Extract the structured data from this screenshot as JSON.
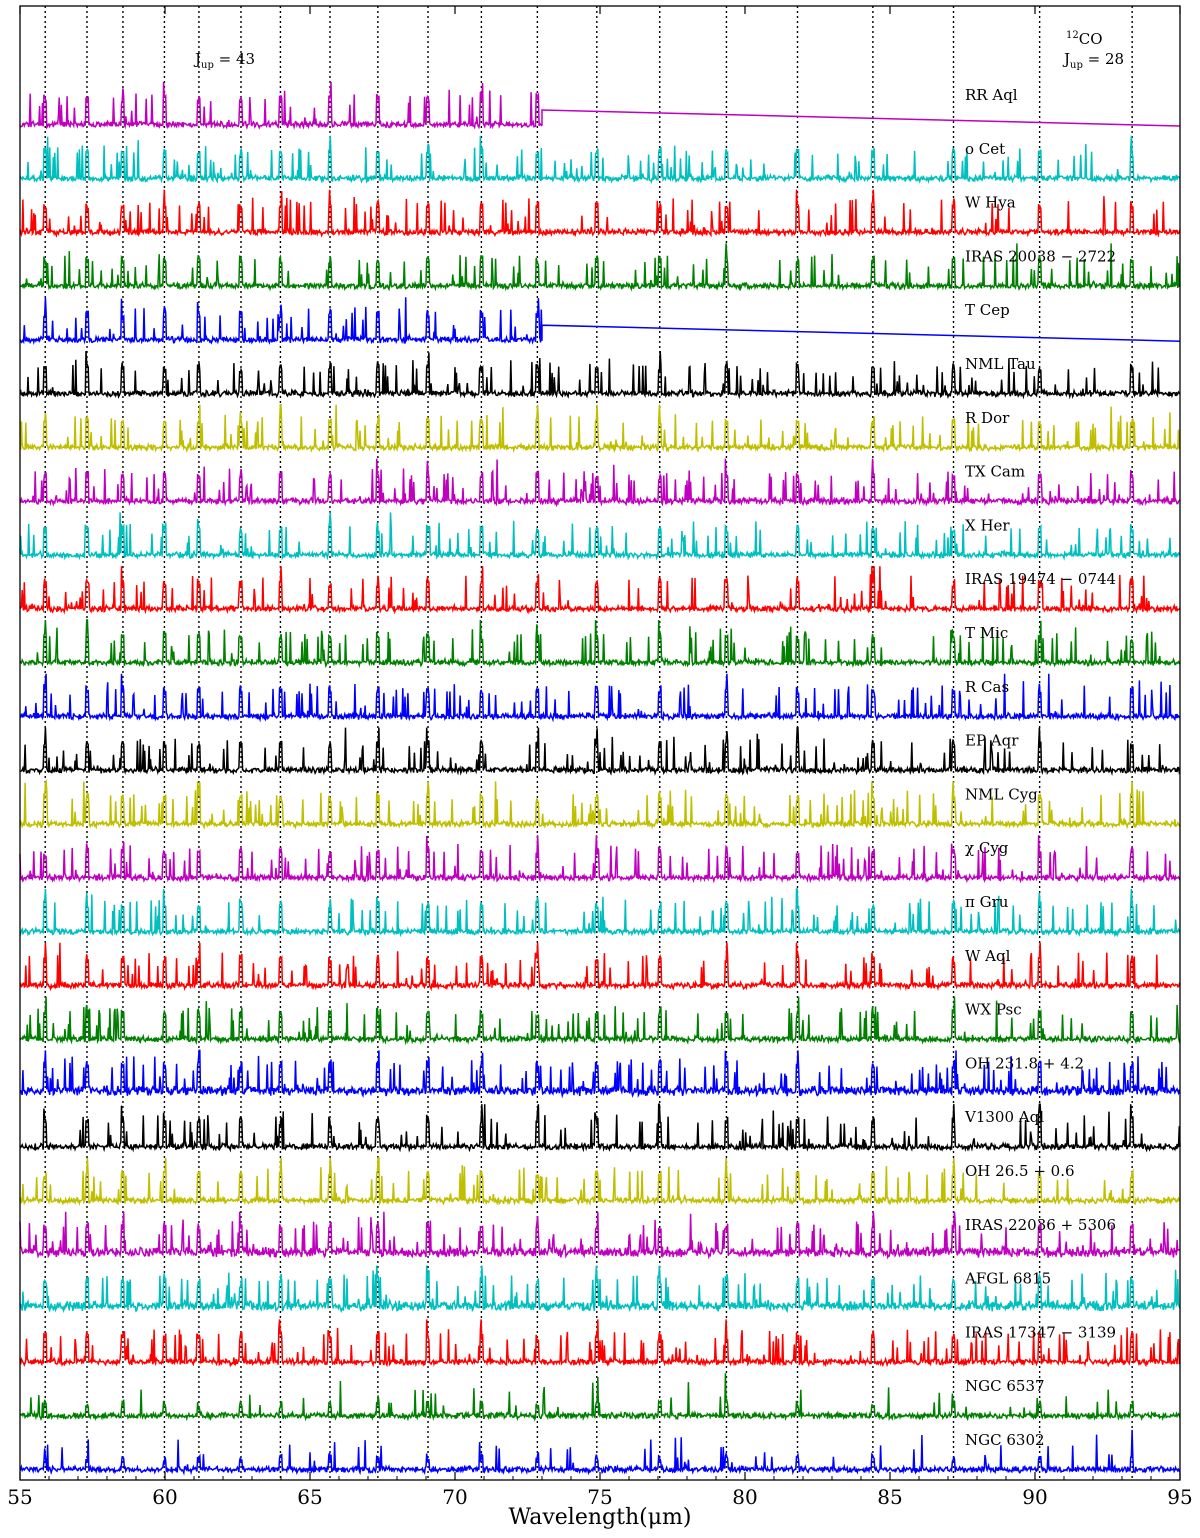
{
  "chart_data": {
    "type": "line",
    "xlabel": "Wavelength(μm)",
    "xlim": [
      55,
      95
    ],
    "xticks": [
      55,
      60,
      65,
      70,
      75,
      80,
      85,
      90,
      95
    ],
    "xtick_labels": [
      "55",
      "60",
      "65",
      "70",
      "75",
      "80",
      "85",
      "90",
      "95"
    ],
    "grid": "vertical dotted lines at 12CO transitions",
    "co_line_positions": [
      55.87,
      57.31,
      58.55,
      59.98,
      61.17,
      62.62,
      63.98,
      65.69,
      67.34,
      69.07,
      70.91,
      72.84,
      74.89,
      77.06,
      79.36,
      81.81,
      84.41,
      87.19,
      90.16,
      93.35
    ],
    "annotations": {
      "left_text": "J",
      "left_sub": "up",
      "left_value": " = 43",
      "right_sup": "12",
      "right_text": "CO",
      "right_j": "J",
      "right_sub": "up",
      "right_value": " = 28"
    },
    "series": [
      {
        "name": "RR Aql",
        "color": "#bf00bf",
        "range": [
          55,
          73
        ]
      },
      {
        "name": "o Cet",
        "color": "#00bfbf",
        "range": [
          55,
          95
        ]
      },
      {
        "name": "W Hya",
        "color": "#ff0000",
        "range": [
          55,
          95
        ]
      },
      {
        "name": "IRAS 20038 − 2722",
        "color": "#008000",
        "range": [
          55,
          95
        ]
      },
      {
        "name": "T Cep",
        "color": "#0000ff",
        "range": [
          55,
          73
        ]
      },
      {
        "name": "NML Tau",
        "color": "#000000",
        "range": [
          55,
          95
        ]
      },
      {
        "name": "R Dor",
        "color": "#bfbf00",
        "range": [
          55,
          95
        ]
      },
      {
        "name": "TX Cam",
        "color": "#bf00bf",
        "range": [
          55,
          95
        ]
      },
      {
        "name": "X Her",
        "color": "#00bfbf",
        "range": [
          55,
          95
        ]
      },
      {
        "name": "IRAS 19474 − 0744",
        "color": "#ff0000",
        "range": [
          55,
          95
        ]
      },
      {
        "name": "T Mic",
        "color": "#008000",
        "range": [
          55,
          95
        ]
      },
      {
        "name": "R Cas",
        "color": "#0000ff",
        "range": [
          55,
          95
        ]
      },
      {
        "name": "EP Aqr",
        "color": "#000000",
        "range": [
          55,
          95
        ]
      },
      {
        "name": "NML Cyg",
        "color": "#bfbf00",
        "range": [
          55,
          95
        ]
      },
      {
        "name": "χ Cyg",
        "color": "#bf00bf",
        "range": [
          55,
          95
        ]
      },
      {
        "name": "π Gru",
        "color": "#00bfbf",
        "range": [
          55,
          95
        ]
      },
      {
        "name": "W Aql",
        "color": "#ff0000",
        "range": [
          55,
          95
        ]
      },
      {
        "name": "WX Psc",
        "color": "#008000",
        "range": [
          55,
          95
        ]
      },
      {
        "name": "OH 231.8 + 4.2",
        "color": "#0000ff",
        "range": [
          55,
          95
        ]
      },
      {
        "name": "V1300 Aql",
        "color": "#000000",
        "range": [
          55,
          95
        ]
      },
      {
        "name": "OH 26.5 + 0.6",
        "color": "#bfbf00",
        "range": [
          55,
          95
        ]
      },
      {
        "name": "IRAS 22036 + 5306",
        "color": "#bf00bf",
        "range": [
          55,
          95
        ]
      },
      {
        "name": "AFGL 6815",
        "color": "#00bfbf",
        "range": [
          55,
          95
        ]
      },
      {
        "name": "IRAS 17347 − 3139",
        "color": "#ff0000",
        "range": [
          55,
          95
        ]
      },
      {
        "name": "NGC 6537",
        "color": "#008000",
        "range": [
          55,
          95
        ]
      },
      {
        "name": "NGC 6302",
        "color": "#0000ff",
        "range": [
          55,
          95
        ]
      }
    ]
  }
}
